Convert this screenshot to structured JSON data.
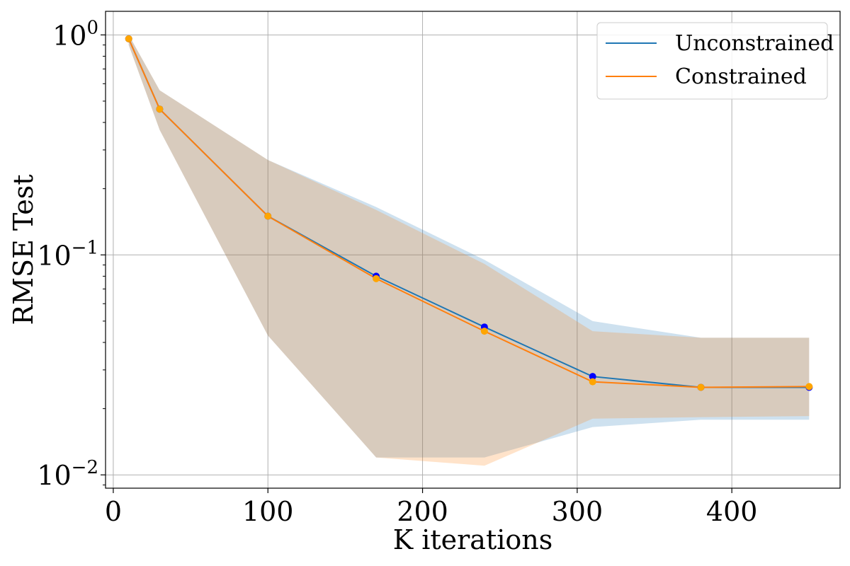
{
  "chart_data": {
    "type": "line",
    "title": "",
    "xlabel": "K iterations",
    "ylabel": "RMSE Test",
    "yscale": "log",
    "xlim": [
      -5,
      470
    ],
    "ylim": [
      0.0087,
      1.28
    ],
    "grid": true,
    "legend_position": "top-right",
    "x": [
      10,
      30,
      100,
      170,
      240,
      310,
      380,
      450
    ],
    "x_ticks": [
      {
        "value": 0,
        "label": "0"
      },
      {
        "value": 100,
        "label": "100"
      },
      {
        "value": 200,
        "label": "200"
      },
      {
        "value": 300,
        "label": "300"
      },
      {
        "value": 400,
        "label": "400"
      }
    ],
    "y_ticks": [
      {
        "value": 1,
        "base": "10",
        "exp": "0"
      },
      {
        "value": 0.1,
        "base": "10",
        "exp": "−1"
      },
      {
        "value": 0.01,
        "base": "10",
        "exp": "−2"
      }
    ],
    "series": [
      {
        "name": "Unconstrained",
        "color": "#1f77b4",
        "marker_color": "#0000ff",
        "band_color": "#1f77b4",
        "values": [
          0.96,
          0.46,
          0.15,
          0.08,
          0.047,
          0.028,
          0.025,
          0.025
        ],
        "lower": [
          0.9,
          0.37,
          0.043,
          0.012,
          0.012,
          0.0165,
          0.0178,
          0.0178
        ],
        "upper": [
          1.0,
          0.56,
          0.27,
          0.165,
          0.095,
          0.05,
          0.042,
          0.042
        ]
      },
      {
        "name": "Constrained",
        "color": "#ff7f0e",
        "marker_color": "#ffa500",
        "band_color": "#ff7f0e",
        "values": [
          0.96,
          0.46,
          0.15,
          0.078,
          0.045,
          0.0265,
          0.025,
          0.0252
        ],
        "lower": [
          0.9,
          0.37,
          0.043,
          0.012,
          0.011,
          0.018,
          0.0183,
          0.0185
        ],
        "upper": [
          1.0,
          0.56,
          0.27,
          0.16,
          0.091,
          0.045,
          0.042,
          0.042
        ]
      }
    ]
  }
}
